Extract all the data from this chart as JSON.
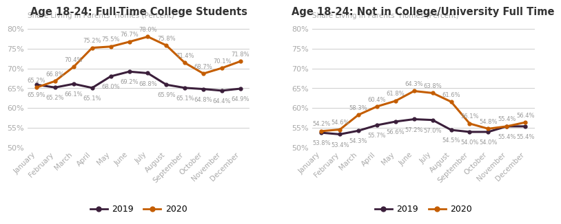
{
  "months": [
    "January",
    "February",
    "March",
    "April",
    "May",
    "June",
    "July",
    "August",
    "September",
    "October",
    "November",
    "December"
  ],
  "left_title": "Age 18-24: Full-Time College Students",
  "right_title": "Age 18-24: Not in College/University Full Time",
  "ylabel": "Share Living in Parents’ Homes (Percent)",
  "left_2019": [
    65.9,
    65.2,
    66.1,
    65.1,
    68.0,
    69.2,
    68.8,
    65.9,
    65.1,
    64.8,
    64.4,
    64.9
  ],
  "left_2020": [
    65.2,
    66.8,
    70.4,
    75.2,
    75.5,
    76.7,
    78.0,
    75.8,
    71.4,
    68.7,
    70.1,
    71.8
  ],
  "right_2019": [
    53.8,
    53.4,
    54.3,
    55.7,
    56.6,
    57.2,
    57.0,
    54.5,
    54.0,
    54.0,
    55.4,
    55.4
  ],
  "right_2020": [
    54.2,
    54.6,
    58.3,
    60.4,
    61.8,
    64.3,
    63.8,
    61.6,
    56.1,
    54.8,
    55.4,
    56.4
  ],
  "color_2019": "#3b1f3b",
  "color_2020": "#c45d00",
  "ylim": [
    50,
    82
  ],
  "yticks": [
    50,
    55,
    60,
    65,
    70,
    75,
    80
  ],
  "bg_color": "#ffffff",
  "grid_color": "#cccccc",
  "ann_color": "#999999",
  "tick_color": "#aaaaaa",
  "ylabel_color": "#aaaaaa",
  "title_color": "#333333",
  "linewidth": 2.2,
  "markersize": 3.5,
  "annotation_fontsize": 6.0,
  "legend_fontsize": 9,
  "title_fontsize": 10.5,
  "ylabel_fontsize": 7.5,
  "xtick_fontsize": 7.5,
  "ytick_fontsize": 8
}
